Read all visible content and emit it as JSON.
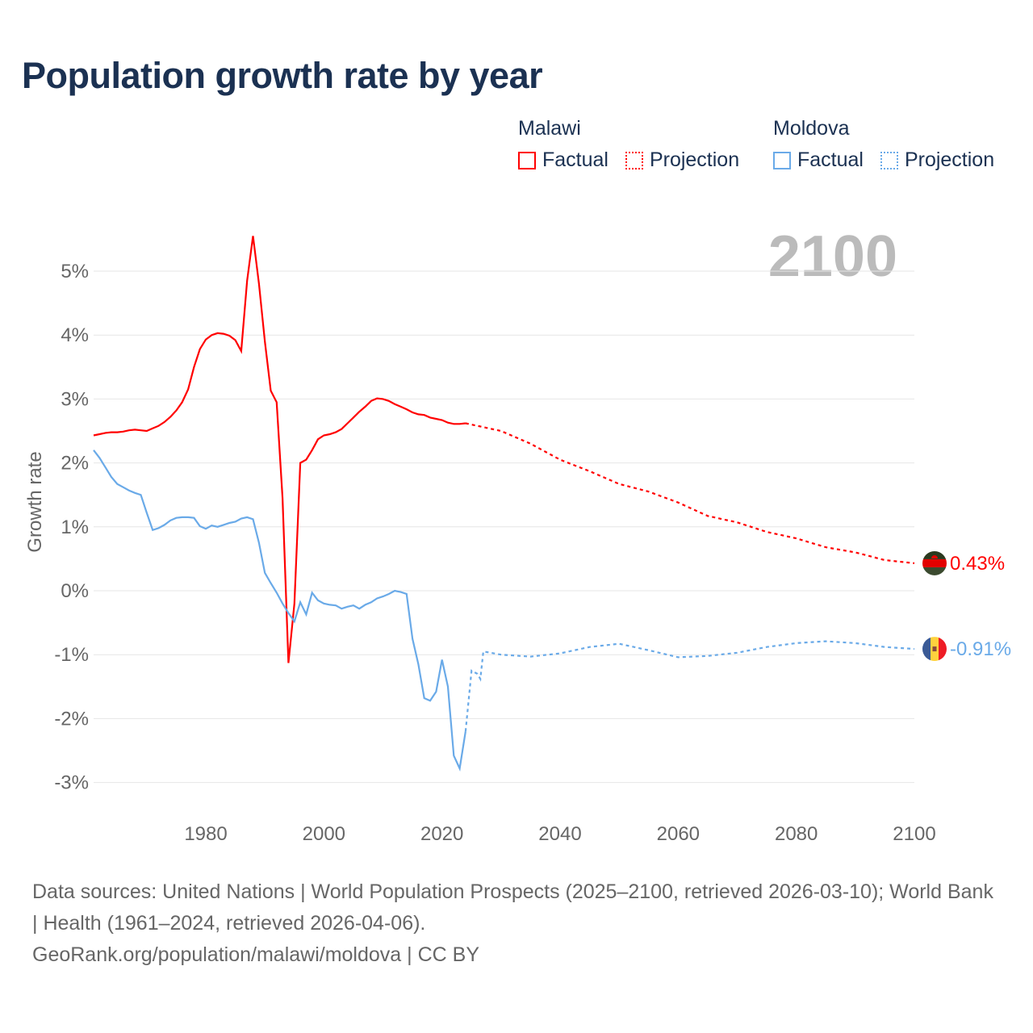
{
  "title": "Population growth rate by year",
  "legend": [
    {
      "group": "Malawi",
      "color": "#ff0000",
      "factual_label": "Factual",
      "projection_label": "Projection"
    },
    {
      "group": "Moldova",
      "color": "#6aaae8",
      "factual_label": "Factual",
      "projection_label": "Projection"
    }
  ],
  "year_display": "2100",
  "footer": {
    "sources": "Data sources: United Nations | World Population Prospects (2025–2100, retrieved 2026-03-10); World Bank | Health (1961–2024, retrieved 2026-04-06).",
    "credit": "GeoRank.org/population/malawi/moldova | CC BY"
  },
  "chart_data": {
    "type": "line",
    "title": "Population growth rate by year",
    "xlabel": "",
    "ylabel": "Growth rate",
    "xlim": [
      1961,
      2100
    ],
    "ylim": [
      -3.5,
      5.8
    ],
    "x_ticks": [
      1980,
      2000,
      2020,
      2040,
      2060,
      2080,
      2100
    ],
    "x_tick_labels": [
      "1980",
      "2000",
      "2020",
      "2040",
      "2060",
      "2080",
      "2100"
    ],
    "y_ticks": [
      5,
      4,
      3,
      2,
      1,
      0,
      -1,
      -2,
      -3
    ],
    "y_tick_labels": [
      "5%",
      "4%",
      "3%",
      "2%",
      "1%",
      "0%",
      "-1%",
      "-2%",
      "-3%"
    ],
    "grid": true,
    "legend_position": "top-right",
    "series": [
      {
        "name": "Malawi",
        "color": "#ff0000",
        "end_label": "0.43%",
        "factual": {
          "x": [
            1961,
            1962,
            1963,
            1964,
            1965,
            1966,
            1967,
            1968,
            1969,
            1970,
            1971,
            1972,
            1973,
            1974,
            1975,
            1976,
            1977,
            1978,
            1979,
            1980,
            1981,
            1982,
            1983,
            1984,
            1985,
            1986,
            1987,
            1988,
            1989,
            1990,
            1991,
            1992,
            1993,
            1994,
            1995,
            1996,
            1997,
            1998,
            1999,
            2000,
            2001,
            2002,
            2003,
            2004,
            2005,
            2006,
            2007,
            2008,
            2009,
            2010,
            2011,
            2012,
            2013,
            2014,
            2015,
            2016,
            2017,
            2018,
            2019,
            2020,
            2021,
            2022,
            2023,
            2024
          ],
          "y": [
            2.43,
            2.45,
            2.47,
            2.48,
            2.48,
            2.49,
            2.51,
            2.52,
            2.51,
            2.5,
            2.54,
            2.58,
            2.64,
            2.72,
            2.82,
            2.95,
            3.15,
            3.5,
            3.78,
            3.93,
            4.0,
            4.03,
            4.02,
            3.99,
            3.92,
            3.75,
            4.85,
            5.55,
            4.8,
            3.9,
            3.13,
            2.95,
            1.45,
            -1.13,
            -0.2,
            2.0,
            2.05,
            2.2,
            2.37,
            2.43,
            2.45,
            2.48,
            2.53,
            2.62,
            2.71,
            2.8,
            2.88,
            2.97,
            3.01,
            3.0,
            2.97,
            2.92,
            2.88,
            2.84,
            2.79,
            2.76,
            2.75,
            2.71,
            2.69,
            2.67,
            2.63,
            2.61,
            2.61,
            2.62
          ]
        },
        "projection": {
          "x": [
            2024,
            2025,
            2030,
            2035,
            2040,
            2045,
            2050,
            2055,
            2060,
            2065,
            2070,
            2075,
            2080,
            2085,
            2090,
            2095,
            2100
          ],
          "y": [
            2.62,
            2.6,
            2.5,
            2.3,
            2.05,
            1.87,
            1.67,
            1.55,
            1.38,
            1.17,
            1.07,
            0.92,
            0.82,
            0.68,
            0.6,
            0.48,
            0.43
          ]
        }
      },
      {
        "name": "Moldova",
        "color": "#6aaae8",
        "end_label": "-0.91%",
        "factual": {
          "x": [
            1961,
            1962,
            1963,
            1964,
            1965,
            1966,
            1967,
            1968,
            1969,
            1970,
            1971,
            1972,
            1973,
            1974,
            1975,
            1976,
            1977,
            1978,
            1979,
            1980,
            1981,
            1982,
            1983,
            1984,
            1985,
            1986,
            1987,
            1988,
            1989,
            1990,
            1991,
            1992,
            1993,
            1994,
            1995,
            1996,
            1997,
            1998,
            1999,
            2000,
            2001,
            2002,
            2003,
            2004,
            2005,
            2006,
            2007,
            2008,
            2009,
            2010,
            2011,
            2012,
            2013,
            2014,
            2015,
            2016,
            2017,
            2018,
            2019,
            2020,
            2021,
            2022,
            2023,
            2024
          ],
          "y": [
            2.2,
            2.08,
            1.93,
            1.78,
            1.67,
            1.62,
            1.57,
            1.53,
            1.5,
            1.22,
            0.95,
            0.98,
            1.03,
            1.1,
            1.14,
            1.15,
            1.15,
            1.14,
            1.01,
            0.97,
            1.02,
            1.0,
            1.03,
            1.06,
            1.08,
            1.13,
            1.15,
            1.12,
            0.75,
            0.28,
            0.12,
            -0.03,
            -0.2,
            -0.35,
            -0.48,
            -0.18,
            -0.37,
            -0.03,
            -0.15,
            -0.2,
            -0.22,
            -0.23,
            -0.28,
            -0.25,
            -0.23,
            -0.28,
            -0.22,
            -0.18,
            -0.12,
            -0.09,
            -0.05,
            0.0,
            -0.02,
            -0.05,
            -0.75,
            -1.15,
            -1.68,
            -1.72,
            -1.58,
            -1.08,
            -1.5,
            -2.58,
            -2.78,
            -2.2
          ]
        },
        "projection": {
          "x": [
            2024,
            2025,
            2026,
            2026.5,
            2027,
            2030,
            2035,
            2040,
            2045,
            2050,
            2055,
            2060,
            2065,
            2070,
            2075,
            2080,
            2085,
            2090,
            2095,
            2100
          ],
          "y": [
            -2.2,
            -1.25,
            -1.3,
            -1.38,
            -0.95,
            -1.0,
            -1.03,
            -0.98,
            -0.88,
            -0.83,
            -0.93,
            -1.04,
            -1.02,
            -0.97,
            -0.88,
            -0.82,
            -0.79,
            -0.82,
            -0.88,
            -0.91
          ]
        }
      }
    ]
  }
}
